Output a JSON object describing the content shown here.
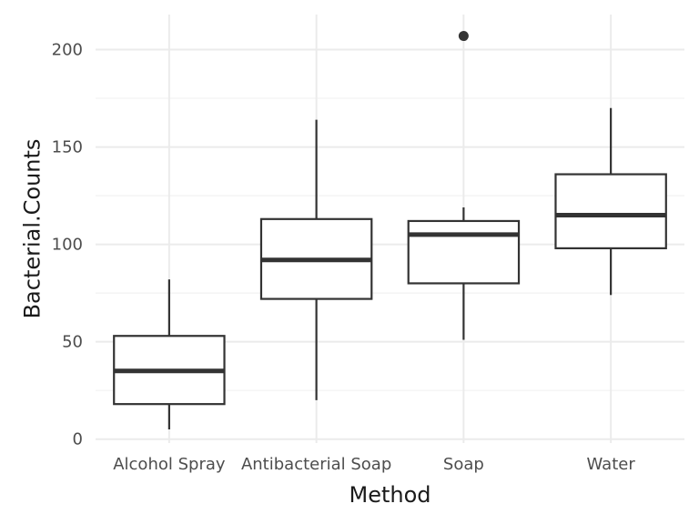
{
  "chart_data": {
    "type": "boxplot",
    "title": "",
    "xlabel": "Method",
    "ylabel": "Bacterial.Counts",
    "ylim": [
      -2,
      218
    ],
    "y_ticks": [
      0,
      50,
      100,
      150,
      200
    ],
    "y_tick_labels": [
      "0",
      "50",
      "100",
      "150",
      "200"
    ],
    "grid": true,
    "categories": [
      "Alcohol Spray",
      "Antibacterial Soap",
      "Soap",
      "Water"
    ],
    "boxes": [
      {
        "category": "Alcohol Spray",
        "whisker_low": 5,
        "q1": 18,
        "median": 35,
        "q3": 53,
        "whisker_high": 82,
        "outliers": []
      },
      {
        "category": "Antibacterial Soap",
        "whisker_low": 20,
        "q1": 72,
        "median": 92,
        "q3": 113,
        "whisker_high": 164,
        "outliers": []
      },
      {
        "category": "Soap",
        "whisker_low": 51,
        "q1": 80,
        "median": 105,
        "q3": 112,
        "whisker_high": 119,
        "outliers": [
          207
        ]
      },
      {
        "category": "Water",
        "whisker_low": 74,
        "q1": 98,
        "median": 115,
        "q3": 136,
        "whisker_high": 170,
        "outliers": []
      }
    ]
  }
}
